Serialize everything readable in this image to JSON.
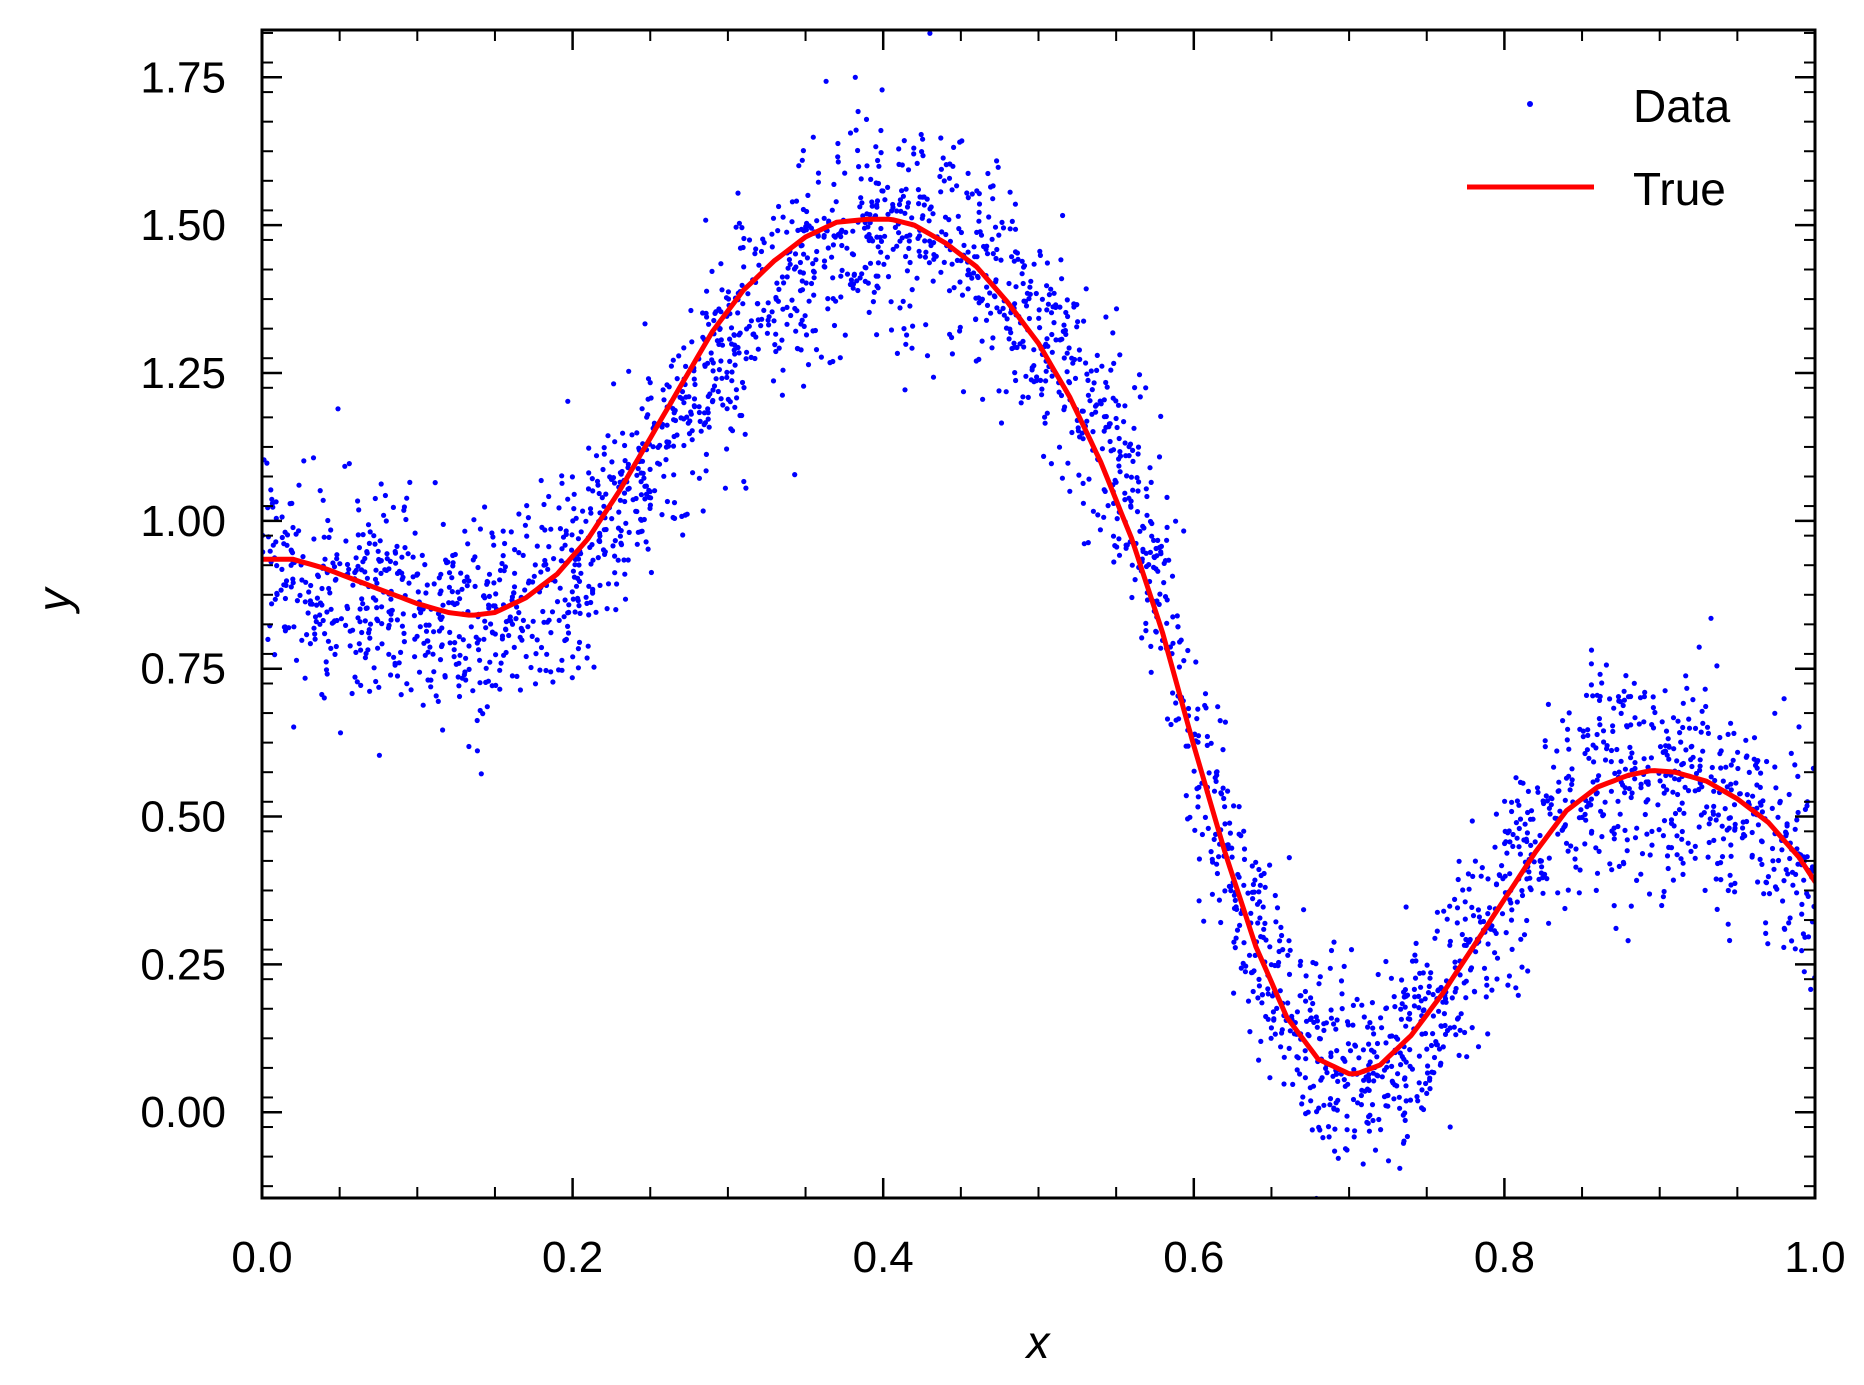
{
  "chart_data": {
    "type": "scatter",
    "xlabel": "x",
    "ylabel": "y",
    "xlim": [
      0.0,
      1.0
    ],
    "ylim": [
      -0.145,
      1.83
    ],
    "x_ticks": [
      "0.0",
      "0.2",
      "0.4",
      "0.6",
      "0.8",
      "1.0"
    ],
    "y_ticks": [
      "0.00",
      "0.25",
      "0.50",
      "0.75",
      "1.00",
      "1.25",
      "1.50",
      "1.75"
    ],
    "legend": {
      "position": "top-right"
    },
    "series": [
      {
        "name": "Data",
        "kind": "scatter",
        "color": "#0000ff",
        "noise_std": 0.09,
        "n_points": 3000,
        "x": [
          0.0,
          0.02,
          0.05,
          0.08,
          0.1,
          0.13,
          0.15,
          0.18,
          0.2,
          0.22,
          0.25,
          0.28,
          0.3,
          0.33,
          0.35,
          0.38,
          0.4,
          0.42,
          0.45,
          0.48,
          0.5,
          0.53,
          0.55,
          0.58,
          0.6,
          0.63,
          0.65,
          0.68,
          0.7,
          0.72,
          0.75,
          0.78,
          0.8,
          0.83,
          0.85,
          0.88,
          0.9,
          0.92,
          0.95,
          0.98,
          1.0
        ],
        "y": [
          0.95,
          0.9,
          0.88,
          0.86,
          0.84,
          0.82,
          0.86,
          0.88,
          0.92,
          0.98,
          1.1,
          1.2,
          1.3,
          1.38,
          1.45,
          1.5,
          1.51,
          1.5,
          1.46,
          1.4,
          1.32,
          1.2,
          1.1,
          0.9,
          0.6,
          0.38,
          0.22,
          0.1,
          0.06,
          0.08,
          0.15,
          0.28,
          0.38,
          0.48,
          0.55,
          0.58,
          0.58,
          0.56,
          0.52,
          0.45,
          0.39
        ]
      },
      {
        "name": "True",
        "kind": "line",
        "color": "#ff0000",
        "x": [
          0.0,
          0.02,
          0.04,
          0.06,
          0.08,
          0.1,
          0.12,
          0.135,
          0.15,
          0.17,
          0.19,
          0.21,
          0.23,
          0.25,
          0.27,
          0.29,
          0.31,
          0.33,
          0.35,
          0.37,
          0.39,
          0.405,
          0.42,
          0.44,
          0.46,
          0.48,
          0.5,
          0.52,
          0.54,
          0.56,
          0.58,
          0.6,
          0.62,
          0.64,
          0.66,
          0.68,
          0.7,
          0.705,
          0.72,
          0.74,
          0.76,
          0.78,
          0.8,
          0.82,
          0.84,
          0.86,
          0.88,
          0.895,
          0.91,
          0.93,
          0.95,
          0.97,
          0.99,
          1.0
        ],
        "y": [
          0.935,
          0.935,
          0.92,
          0.9,
          0.88,
          0.86,
          0.845,
          0.84,
          0.845,
          0.87,
          0.91,
          0.97,
          1.05,
          1.14,
          1.23,
          1.32,
          1.39,
          1.44,
          1.48,
          1.505,
          1.51,
          1.51,
          1.5,
          1.47,
          1.43,
          1.37,
          1.3,
          1.21,
          1.1,
          0.97,
          0.81,
          0.62,
          0.44,
          0.28,
          0.16,
          0.09,
          0.065,
          0.065,
          0.08,
          0.13,
          0.2,
          0.28,
          0.36,
          0.44,
          0.51,
          0.55,
          0.57,
          0.578,
          0.575,
          0.56,
          0.53,
          0.49,
          0.43,
          0.39
        ]
      }
    ]
  }
}
